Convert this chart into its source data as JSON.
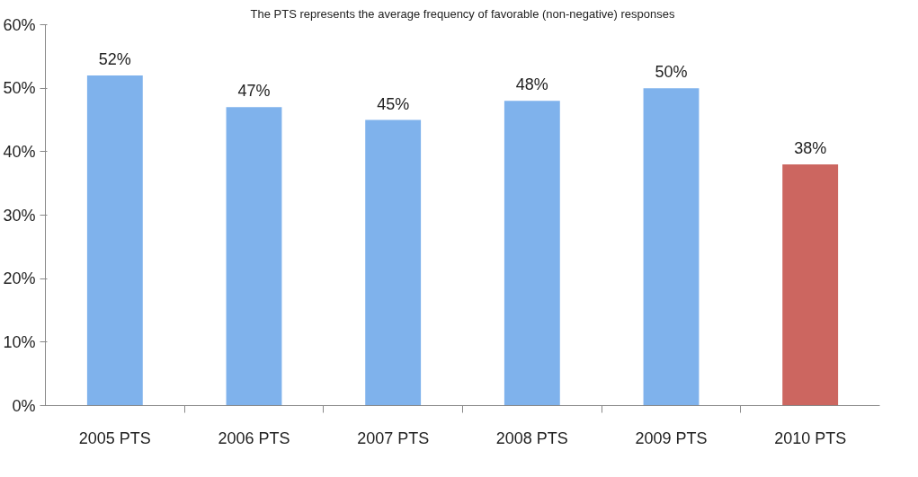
{
  "chart_data": {
    "type": "bar",
    "title": "The PTS represents the average frequency of favorable (non-negative) responses",
    "categories": [
      "2005 PTS",
      "2006 PTS",
      "2007 PTS",
      "2008 PTS",
      "2009 PTS",
      "2010 PTS"
    ],
    "values": [
      52,
      47,
      45,
      48,
      50,
      38
    ],
    "colors": [
      "#7fb2ec",
      "#7fb2ec",
      "#7fb2ec",
      "#7fb2ec",
      "#7fb2ec",
      "#cc6660"
    ],
    "value_labels": [
      "52%",
      "47%",
      "45%",
      "48%",
      "50%",
      "38%"
    ],
    "ylim": [
      0,
      60
    ],
    "yticks": [
      {
        "value": 0,
        "label": "0%"
      },
      {
        "value": 10,
        "label": "10%"
      },
      {
        "value": 20,
        "label": "20%"
      },
      {
        "value": 30,
        "label": "30%"
      },
      {
        "value": 40,
        "label": "40%"
      },
      {
        "value": 50,
        "label": "50%"
      },
      {
        "value": 60,
        "label": "60%"
      }
    ],
    "grid": false
  }
}
